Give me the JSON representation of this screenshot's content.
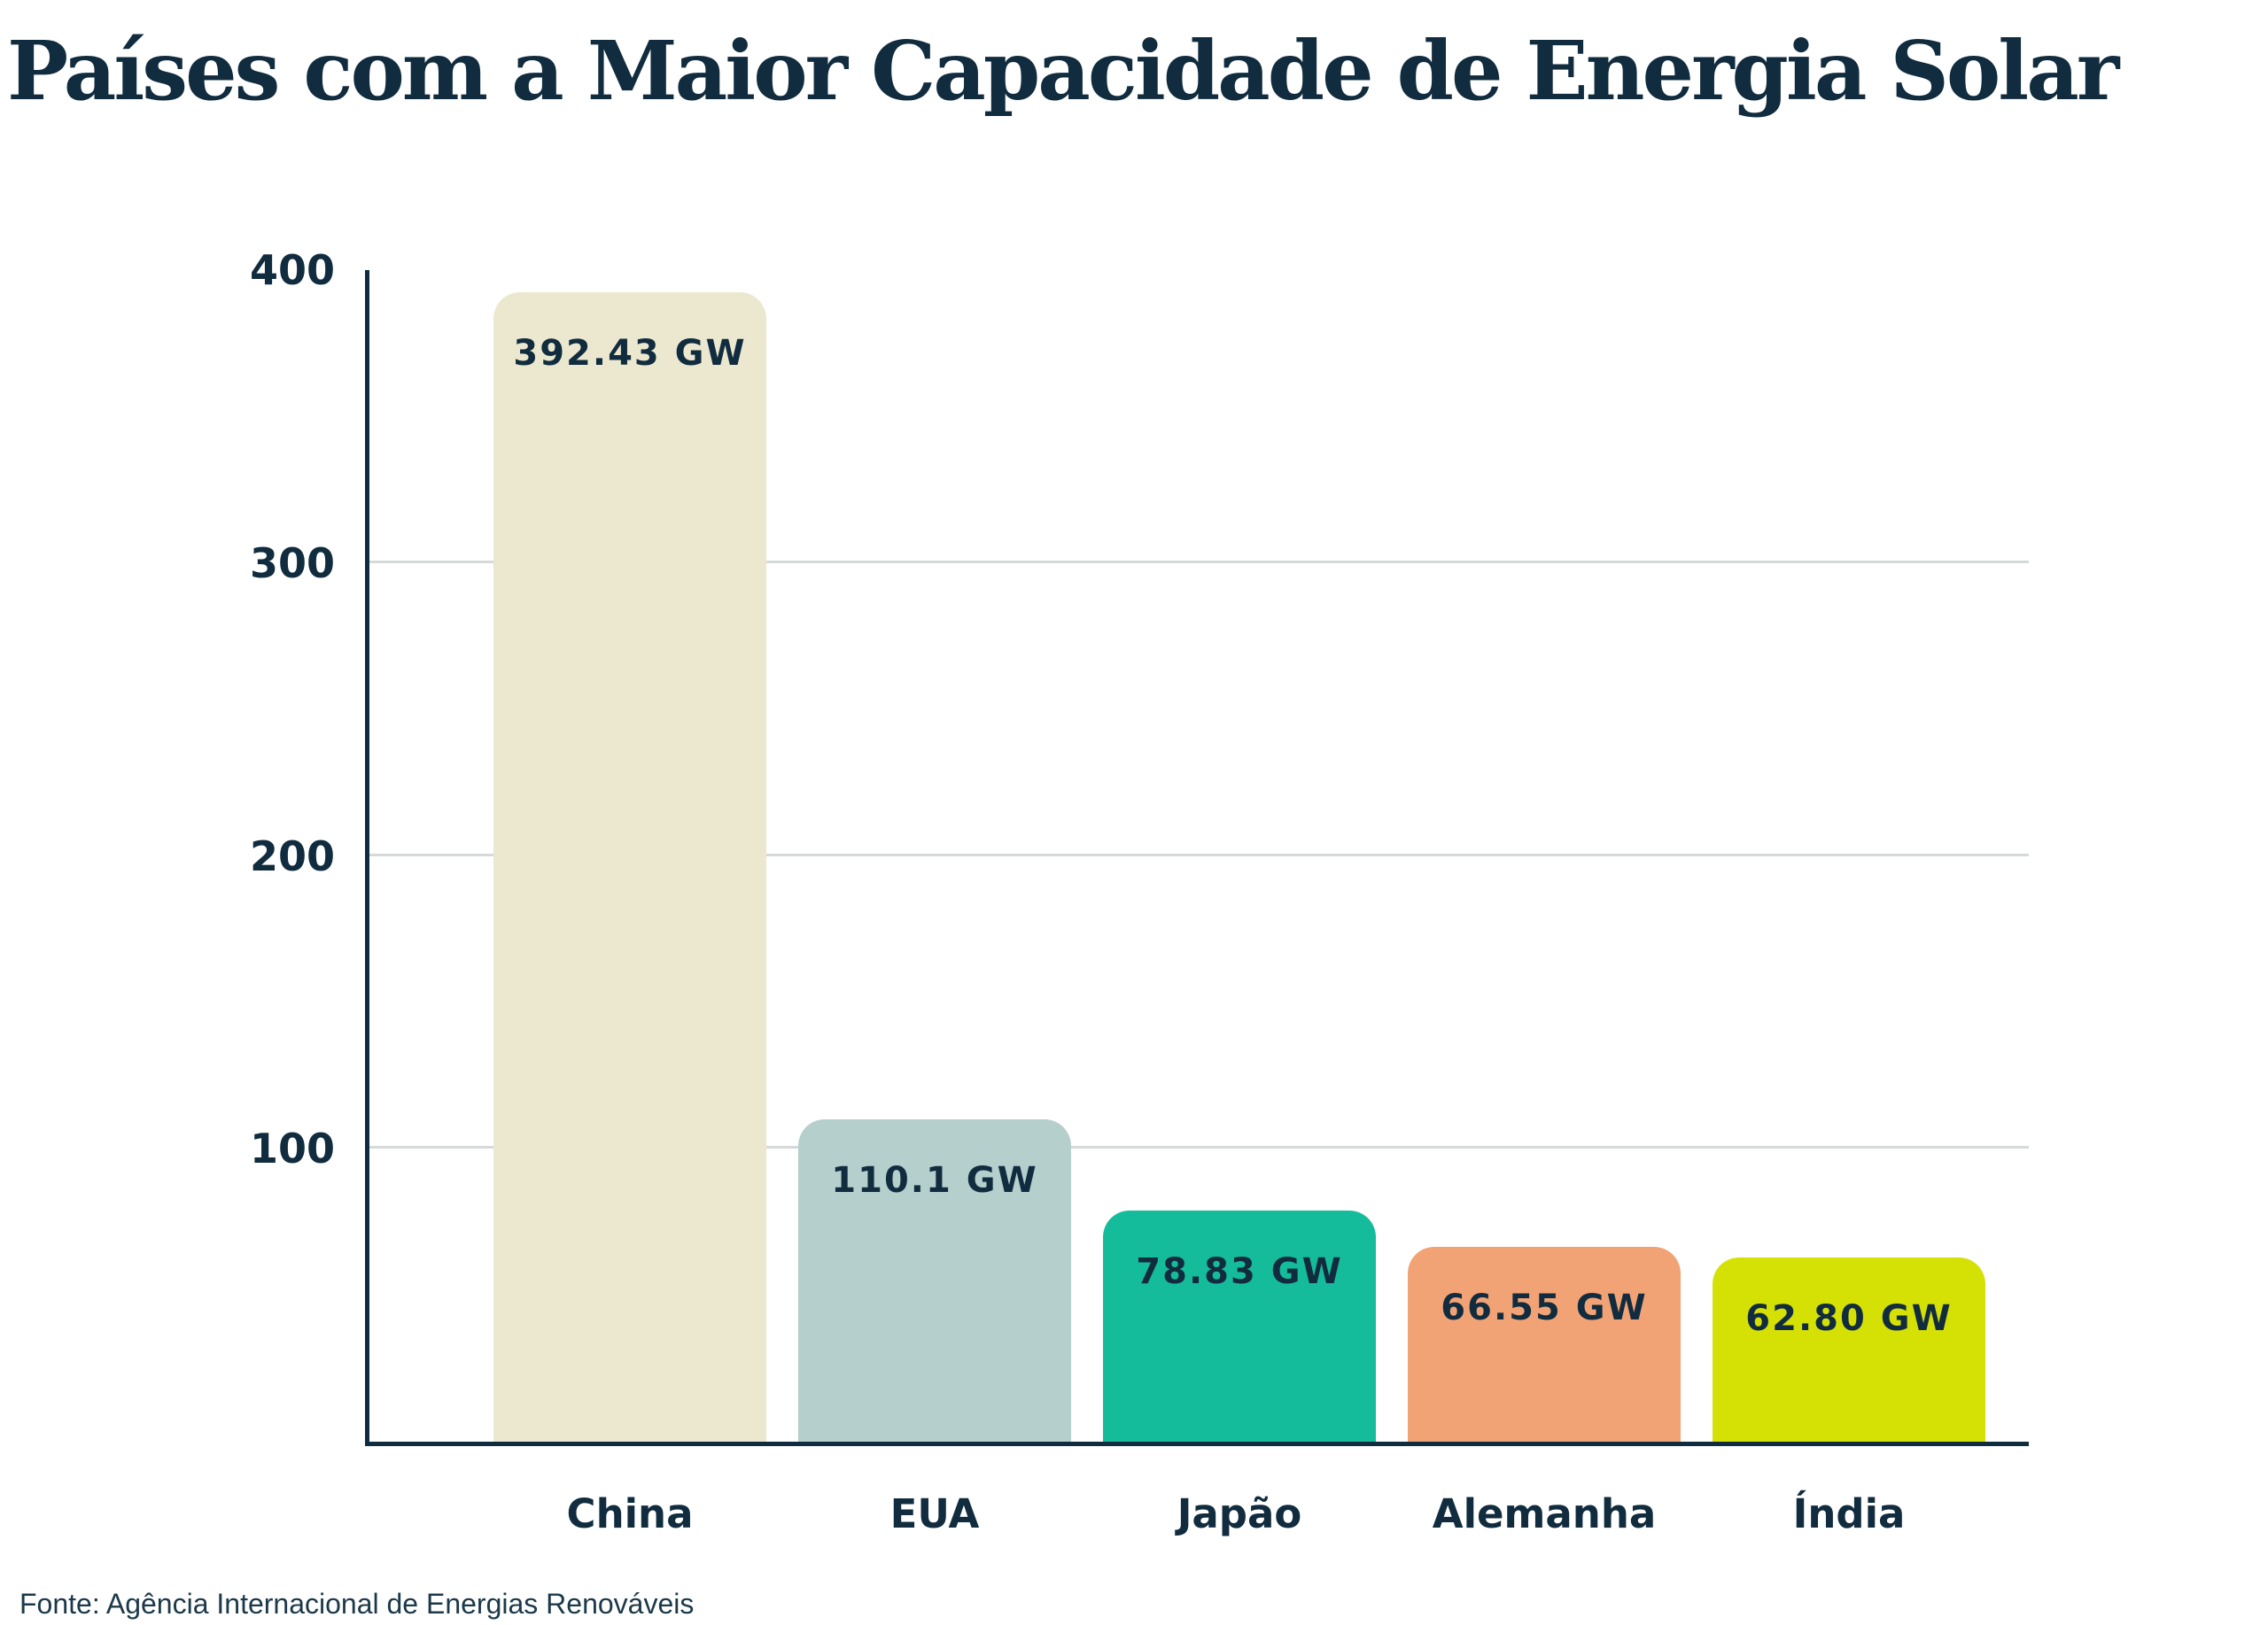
{
  "title": "Países com a Maior Capacidade de Energia Solar",
  "footer": {
    "source": "Fonte: Agência Internacional de Energias Renováveis"
  },
  "chart_data": {
    "type": "bar",
    "title": "Países com a Maior Capacidade de Energia Solar",
    "categories": [
      "China",
      "EUA",
      "Japão",
      "Alemanha",
      "Índia"
    ],
    "values": [
      392.43,
      110.1,
      78.83,
      66.55,
      62.8
    ],
    "value_labels": [
      "392.43 GW",
      "110.1 GW",
      "78.83 GW",
      "66.55 GW",
      "62.80 GW"
    ],
    "unit": "GW",
    "bar_colors": [
      "#ece8d0",
      "#b5cfcd",
      "#15bc9b",
      "#f2a376",
      "#d5e105"
    ],
    "xlabel": "",
    "ylabel": "",
    "ylim": [
      0,
      400
    ],
    "yticks": [
      100,
      200,
      300,
      400
    ],
    "gridline_ticks": [
      100,
      200,
      300
    ],
    "grid": "horizontal",
    "legend": "none",
    "axis_color": "#112c3e",
    "gridline_color": "#d6d9da",
    "text_color": "#112c3e",
    "source": "Fonte: Agência Internacional de Energias Renováveis"
  }
}
